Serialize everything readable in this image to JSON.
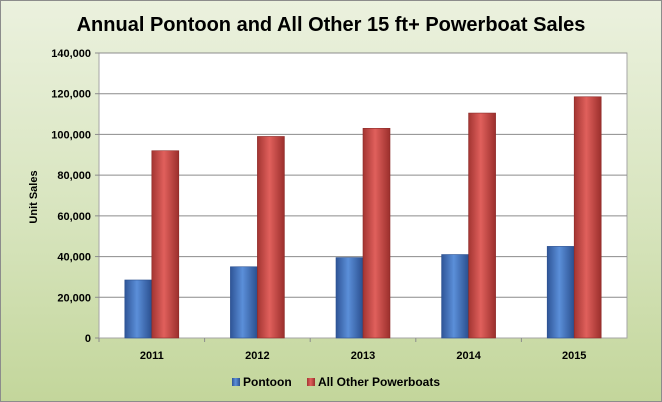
{
  "chart_data": {
    "type": "bar",
    "title": "Annual Pontoon and All Other 15 ft+ Powerboat Sales",
    "xlabel": "",
    "ylabel": "Unit Sales",
    "categories": [
      "2011",
      "2012",
      "2013",
      "2014",
      "2015"
    ],
    "series": [
      {
        "name": "Pontoon",
        "color": "#4472c4",
        "values": [
          28500,
          35000,
          39500,
          41000,
          45000
        ]
      },
      {
        "name": "All Other Powerboats",
        "color": "#c0504d",
        "values": [
          92000,
          99000,
          103000,
          110500,
          118500
        ]
      }
    ],
    "ylim": [
      0,
      140000
    ],
    "yticks": [
      "0",
      "20,000",
      "40,000",
      "60,000",
      "80,000",
      "100,000",
      "120,000",
      "140,000"
    ],
    "grid": true,
    "legend": "bottom"
  }
}
